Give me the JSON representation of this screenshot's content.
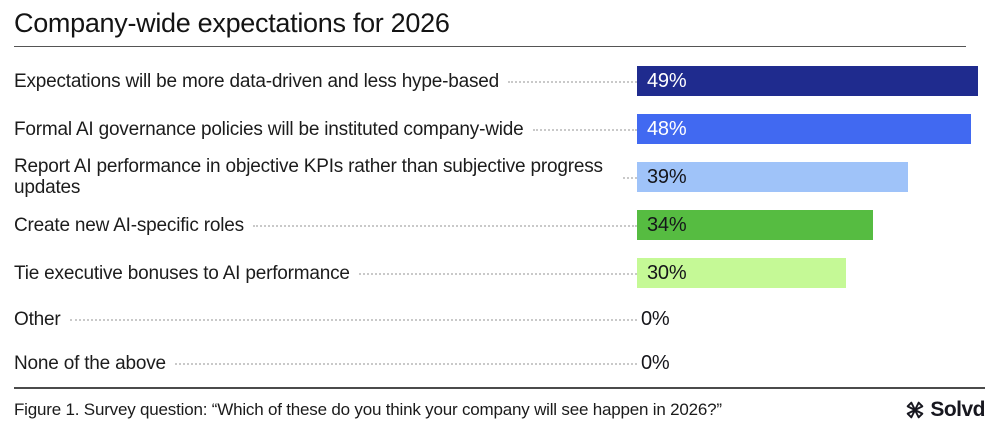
{
  "title": "Company-wide expectations for 2026",
  "chart_data": {
    "type": "bar",
    "orientation": "horizontal",
    "title": "Company-wide expectations for 2026",
    "unit": "%",
    "xlim": [
      0,
      50
    ],
    "grid": false,
    "legend": "none",
    "categories": [
      "Expectations will be more data-driven and less hype-based",
      "Formal AI governance policies will be instituted company-wide",
      "Report AI performance in objective KPIs rather than subjective progress updates",
      "Create new AI-specific roles",
      "Tie executive bonuses to AI performance",
      "Other",
      "None of the above"
    ],
    "values": [
      49,
      48,
      39,
      34,
      30,
      0,
      0
    ],
    "rows": [
      {
        "label": "Expectations will be more data-driven and less hype-based",
        "value": 49,
        "value_label": "49%",
        "bar_color": "#1f2b8e",
        "value_color": "#ffffff"
      },
      {
        "label": "Formal AI governance policies will be instituted company-wide",
        "value": 48,
        "value_label": "48%",
        "bar_color": "#4169f1",
        "value_color": "#ffffff"
      },
      {
        "label": "Report AI performance in objective KPIs rather than subjective progress updates",
        "value": 39,
        "value_label": "39%",
        "bar_color": "#9fc3f9",
        "value_color": "#15151a"
      },
      {
        "label": "Create new AI-specific roles",
        "value": 34,
        "value_label": "34%",
        "bar_color": "#56bc41",
        "value_color": "#15151a"
      },
      {
        "label": "Tie executive bonuses to AI performance",
        "value": 30,
        "value_label": "30%",
        "bar_color": "#c5f996",
        "value_color": "#15151a"
      },
      {
        "label": "Other",
        "value": 0,
        "value_label": "0%",
        "bar_color": null,
        "value_color": "#15151a"
      },
      {
        "label": "None of the above",
        "value": 0,
        "value_label": "0%",
        "bar_color": null,
        "value_color": "#15151a"
      }
    ]
  },
  "footer": {
    "caption": "Figure 1. Survey question: “Which of these do you think your company will see happen in 2026?”",
    "brand": "Solvd"
  }
}
